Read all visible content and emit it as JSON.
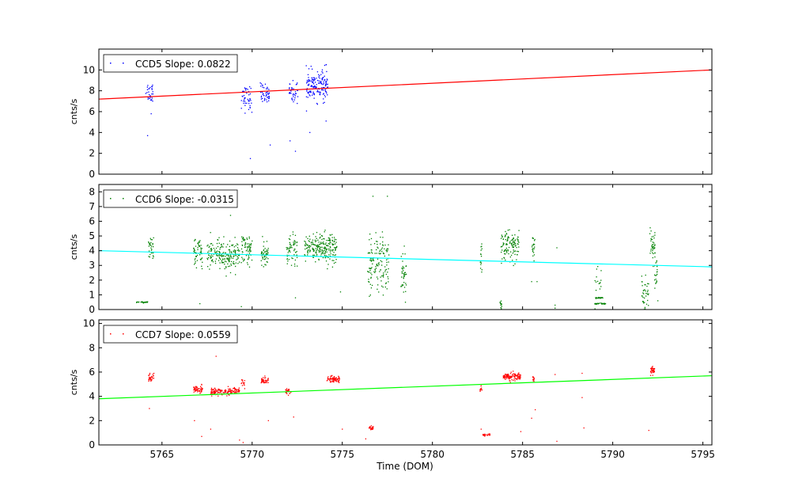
{
  "xlabel": "Time (DOM)",
  "x_ticks": [
    5765,
    5770,
    5775,
    5780,
    5785,
    5790,
    5795
  ],
  "chart_data": [
    {
      "type": "scatter",
      "legend": "CCD5 Slope: 0.0822",
      "ylabel": "cnts/s",
      "xlim": [
        5761.5,
        5795.5
      ],
      "ylim": [
        0,
        12
      ],
      "y_ticks": [
        0,
        2,
        4,
        6,
        8,
        10
      ],
      "point_color": "#0000ff",
      "fit_color": "#ff0000",
      "fit_line": {
        "x": [
          5761.5,
          5795.5
        ],
        "y": [
          7.2,
          10.0
        ]
      },
      "clusters": [
        {
          "x": 5764.3,
          "dx": 0.2,
          "y": 7.9,
          "sd": 0.5,
          "n": 30
        },
        {
          "x": 5769.7,
          "dx": 0.3,
          "y": 7.3,
          "sd": 0.6,
          "n": 45
        },
        {
          "x": 5770.7,
          "dx": 0.25,
          "y": 7.7,
          "sd": 0.5,
          "n": 45
        },
        {
          "x": 5772.3,
          "dx": 0.25,
          "y": 7.9,
          "sd": 0.5,
          "n": 40
        },
        {
          "x": 5773.6,
          "dx": 0.6,
          "y": 8.5,
          "sd": 0.7,
          "n": 160
        }
      ],
      "outliers": [
        {
          "x": 5764.2,
          "y": 3.7
        },
        {
          "x": 5764.4,
          "y": 5.8
        },
        {
          "x": 5769.9,
          "y": 1.5
        },
        {
          "x": 5771.0,
          "y": 2.8
        },
        {
          "x": 5772.1,
          "y": 3.2
        },
        {
          "x": 5772.4,
          "y": 2.2
        },
        {
          "x": 5773.2,
          "y": 4.0
        },
        {
          "x": 5774.1,
          "y": 5.1
        },
        {
          "x": 5774.1,
          "y": 10.5
        }
      ]
    },
    {
      "type": "scatter",
      "legend": "CCD6 Slope: -0.0315",
      "ylabel": "cnts/s",
      "xlim": [
        5761.5,
        5795.5
      ],
      "ylim": [
        0,
        8.5
      ],
      "y_ticks": [
        0,
        1,
        2,
        3,
        4,
        5,
        6,
        7,
        8
      ],
      "point_color": "#008000",
      "fit_color": "#00ffff",
      "fit_line": {
        "x": [
          5761.5,
          5795.5
        ],
        "y": [
          4.0,
          2.9
        ]
      },
      "clusters": [
        {
          "x": 5763.9,
          "dx": 0.35,
          "y": 0.5,
          "sd": 0.02,
          "n": 25
        },
        {
          "x": 5764.4,
          "dx": 0.15,
          "y": 4.1,
          "sd": 0.5,
          "n": 30
        },
        {
          "x": 5767.0,
          "dx": 0.25,
          "y": 3.8,
          "sd": 0.4,
          "n": 60
        },
        {
          "x": 5768.4,
          "dx": 0.9,
          "y": 3.7,
          "sd": 0.5,
          "n": 200
        },
        {
          "x": 5769.7,
          "dx": 0.3,
          "y": 4.1,
          "sd": 0.5,
          "n": 70
        },
        {
          "x": 5770.7,
          "dx": 0.2,
          "y": 3.7,
          "sd": 0.4,
          "n": 50
        },
        {
          "x": 5772.2,
          "dx": 0.3,
          "y": 4.0,
          "sd": 0.5,
          "n": 60
        },
        {
          "x": 5773.8,
          "dx": 0.9,
          "y": 4.2,
          "sd": 0.5,
          "n": 230
        },
        {
          "x": 5777.0,
          "dx": 0.6,
          "y": 3.0,
          "sd": 1.0,
          "n": 140
        },
        {
          "x": 5778.4,
          "dx": 0.15,
          "y": 2.5,
          "sd": 0.8,
          "n": 40
        },
        {
          "x": 5782.7,
          "dx": 0.05,
          "y": 3.6,
          "sd": 0.4,
          "n": 15
        },
        {
          "x": 5783.8,
          "dx": 0.05,
          "y": 0.3,
          "sd": 0.15,
          "n": 12
        },
        {
          "x": 5784.3,
          "dx": 0.5,
          "y": 4.3,
          "sd": 0.5,
          "n": 120
        },
        {
          "x": 5785.6,
          "dx": 0.08,
          "y": 4.2,
          "sd": 0.4,
          "n": 20
        },
        {
          "x": 5789.3,
          "dx": 0.3,
          "y": 0.4,
          "sd": 0.02,
          "n": 30
        },
        {
          "x": 5789.3,
          "dx": 0.25,
          "y": 0.8,
          "sd": 0.02,
          "n": 20
        },
        {
          "x": 5789.2,
          "dx": 0.2,
          "y": 1.9,
          "sd": 0.6,
          "n": 15
        },
        {
          "x": 5791.8,
          "dx": 0.2,
          "y": 1.2,
          "sd": 0.6,
          "n": 40
        },
        {
          "x": 5792.2,
          "dx": 0.15,
          "y": 4.4,
          "sd": 0.5,
          "n": 40
        },
        {
          "x": 5792.4,
          "dx": 0.08,
          "y": 2.2,
          "sd": 0.6,
          "n": 20
        }
      ],
      "outliers": [
        {
          "x": 5768.8,
          "y": 6.4
        },
        {
          "x": 5776.7,
          "y": 7.7
        },
        {
          "x": 5777.5,
          "y": 7.7
        },
        {
          "x": 5776.5,
          "y": 0.9
        },
        {
          "x": 5778.5,
          "y": 0.5
        },
        {
          "x": 5786.8,
          "y": 0.3
        },
        {
          "x": 5786.8,
          "y": 0.1
        },
        {
          "x": 5786.9,
          "y": 4.2
        },
        {
          "x": 5785.5,
          "y": 1.9
        },
        {
          "x": 5785.8,
          "y": 1.9
        },
        {
          "x": 5767.1,
          "y": 0.4
        },
        {
          "x": 5772.4,
          "y": 0.8
        },
        {
          "x": 5769.4,
          "y": 0.2
        },
        {
          "x": 5774.9,
          "y": 1.2
        },
        {
          "x": 5792.5,
          "y": 0.6
        }
      ]
    },
    {
      "type": "scatter",
      "legend": "CCD7 Slope: 0.0559",
      "ylabel": "cnts/s",
      "xlim": [
        5761.5,
        5795.5
      ],
      "ylim": [
        0,
        10.3
      ],
      "y_ticks": [
        0,
        2,
        4,
        6,
        8,
        10
      ],
      "point_color": "#ff0000",
      "fit_color": "#00ff00",
      "fit_line": {
        "x": [
          5761.5,
          5795.5
        ],
        "y": [
          3.8,
          5.7
        ]
      },
      "clusters": [
        {
          "x": 5764.4,
          "dx": 0.15,
          "y": 5.5,
          "sd": 0.2,
          "n": 30
        },
        {
          "x": 5767.0,
          "dx": 0.25,
          "y": 4.6,
          "sd": 0.15,
          "n": 50
        },
        {
          "x": 5768.5,
          "dx": 0.8,
          "y": 4.4,
          "sd": 0.15,
          "n": 150
        },
        {
          "x": 5769.5,
          "dx": 0.1,
          "y": 5.1,
          "sd": 0.2,
          "n": 15
        },
        {
          "x": 5770.7,
          "dx": 0.2,
          "y": 5.3,
          "sd": 0.15,
          "n": 40
        },
        {
          "x": 5772.0,
          "dx": 0.15,
          "y": 4.4,
          "sd": 0.15,
          "n": 25
        },
        {
          "x": 5774.5,
          "dx": 0.35,
          "y": 5.4,
          "sd": 0.15,
          "n": 80
        },
        {
          "x": 5776.6,
          "dx": 0.12,
          "y": 1.4,
          "sd": 0.08,
          "n": 25
        },
        {
          "x": 5782.7,
          "dx": 0.06,
          "y": 4.6,
          "sd": 0.15,
          "n": 12
        },
        {
          "x": 5783.0,
          "dx": 0.2,
          "y": 0.8,
          "sd": 0.05,
          "n": 25
        },
        {
          "x": 5784.4,
          "dx": 0.5,
          "y": 5.6,
          "sd": 0.15,
          "n": 120
        },
        {
          "x": 5785.6,
          "dx": 0.05,
          "y": 5.5,
          "sd": 0.15,
          "n": 12
        },
        {
          "x": 5792.2,
          "dx": 0.12,
          "y": 6.1,
          "sd": 0.2,
          "n": 35
        }
      ],
      "outliers": [
        {
          "x": 5764.3,
          "y": 3.0
        },
        {
          "x": 5768.0,
          "y": 7.3
        },
        {
          "x": 5766.8,
          "y": 2.0
        },
        {
          "x": 5767.7,
          "y": 1.3
        },
        {
          "x": 5767.2,
          "y": 0.7
        },
        {
          "x": 5769.3,
          "y": 0.4
        },
        {
          "x": 5769.5,
          "y": 0.2
        },
        {
          "x": 5770.9,
          "y": 2.0
        },
        {
          "x": 5772.3,
          "y": 2.3
        },
        {
          "x": 5775.0,
          "y": 1.3
        },
        {
          "x": 5785.5,
          "y": 2.2
        },
        {
          "x": 5785.7,
          "y": 2.9
        },
        {
          "x": 5786.9,
          "y": 0.3
        },
        {
          "x": 5786.8,
          "y": 5.8
        },
        {
          "x": 5788.3,
          "y": 5.9
        },
        {
          "x": 5788.3,
          "y": 3.9
        },
        {
          "x": 5788.4,
          "y": 1.4
        },
        {
          "x": 5792.0,
          "y": 1.2
        },
        {
          "x": 5776.3,
          "y": 0.5
        },
        {
          "x": 5782.7,
          "y": 1.3
        },
        {
          "x": 5784.9,
          "y": 1.1
        }
      ]
    }
  ]
}
